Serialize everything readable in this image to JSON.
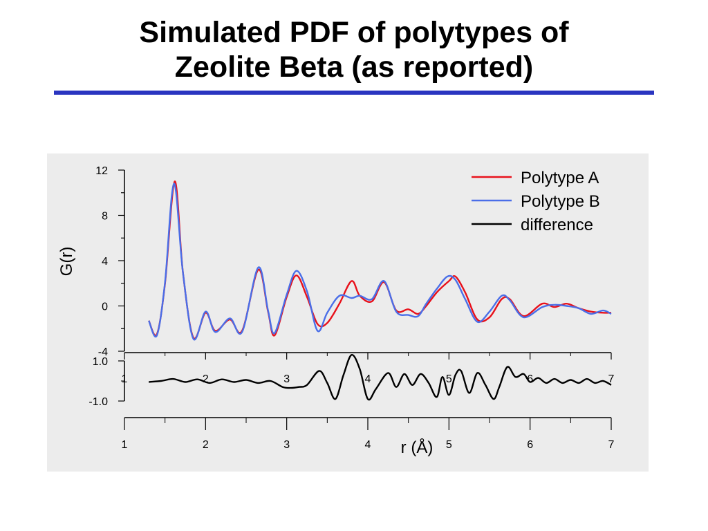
{
  "slide": {
    "title_line1": "Simulated PDF of polytypes of",
    "title_line2": "Zeolite Beta (as reported)"
  },
  "colors": {
    "rule": "#2a35c0",
    "panel": "#ececec",
    "polytype_a": "#e8111b",
    "polytype_b": "#4a6ee8",
    "difference": "#000000"
  },
  "chart_data": [
    {
      "type": "line",
      "title": "",
      "ylabel": "G(r)",
      "xlim": [
        1,
        7
      ],
      "ylim": [
        -4,
        12
      ],
      "yticks": [
        -4,
        0,
        4,
        8,
        12
      ],
      "xticks": [
        1,
        2,
        3,
        4,
        5,
        6,
        7
      ],
      "legend_position": "top-right",
      "series": [
        {
          "name": "Polytype A",
          "color": "#e8111b",
          "x": [
            1.3,
            1.4,
            1.5,
            1.62,
            1.72,
            1.85,
            2.0,
            2.12,
            2.3,
            2.45,
            2.65,
            2.77,
            2.85,
            3.0,
            3.12,
            3.25,
            3.38,
            3.5,
            3.65,
            3.8,
            3.9,
            4.05,
            4.2,
            4.35,
            4.5,
            4.62,
            4.72,
            4.85,
            5.0,
            5.08,
            5.2,
            5.35,
            5.5,
            5.65,
            5.75,
            5.92,
            6.15,
            6.3,
            6.45,
            6.6,
            6.75,
            6.9,
            7.0
          ],
          "y": [
            -1.3,
            -2.5,
            2.0,
            11.0,
            3.0,
            -2.8,
            -0.6,
            -2.2,
            -1.2,
            -2.2,
            3.2,
            -0.5,
            -2.6,
            0.8,
            2.7,
            0.8,
            -1.6,
            -1.5,
            0.2,
            2.2,
            0.9,
            0.4,
            2.1,
            -0.4,
            -0.3,
            -0.7,
            0.0,
            1.2,
            2.2,
            2.6,
            1.2,
            -1.2,
            -1.0,
            0.6,
            0.6,
            -0.9,
            0.2,
            -0.1,
            0.2,
            -0.2,
            -0.5,
            -0.6,
            -0.6
          ]
        },
        {
          "name": "Polytype B",
          "color": "#4a6ee8",
          "x": [
            1.3,
            1.4,
            1.5,
            1.61,
            1.72,
            1.85,
            2.0,
            2.12,
            2.3,
            2.45,
            2.65,
            2.77,
            2.85,
            3.0,
            3.12,
            3.25,
            3.38,
            3.5,
            3.65,
            3.8,
            3.9,
            4.05,
            4.2,
            4.35,
            4.5,
            4.62,
            4.72,
            4.85,
            4.98,
            5.08,
            5.2,
            5.35,
            5.5,
            5.65,
            5.75,
            5.92,
            6.15,
            6.3,
            6.45,
            6.6,
            6.75,
            6.9,
            7.0
          ],
          "y": [
            -1.3,
            -2.6,
            2.1,
            10.8,
            3.0,
            -2.9,
            -0.5,
            -2.3,
            -1.1,
            -2.3,
            3.4,
            -0.4,
            -2.4,
            1.0,
            3.1,
            1.3,
            -2.2,
            -0.6,
            0.9,
            0.7,
            0.9,
            0.6,
            2.2,
            -0.5,
            -0.8,
            -0.9,
            0.2,
            1.5,
            2.6,
            2.3,
            0.6,
            -1.4,
            -0.5,
            0.9,
            0.5,
            -1.0,
            -0.1,
            0.1,
            0.0,
            -0.2,
            -0.7,
            -0.4,
            -0.7
          ]
        }
      ]
    },
    {
      "type": "line",
      "title": "",
      "xlabel": "r (Å)",
      "xlim": [
        1,
        7
      ],
      "ylim": [
        -1.5,
        1.5
      ],
      "yticks": [
        -1.0,
        1.0
      ],
      "ytick_labels": [
        "-1.0",
        "1.0"
      ],
      "xticks": [
        1,
        2,
        3,
        4,
        5,
        6,
        7
      ],
      "legend_position": "top-right",
      "series": [
        {
          "name": "difference",
          "color": "#000000",
          "x": [
            1.3,
            1.45,
            1.6,
            1.75,
            1.9,
            2.05,
            2.2,
            2.35,
            2.5,
            2.65,
            2.8,
            2.95,
            3.05,
            3.15,
            3.25,
            3.4,
            3.5,
            3.6,
            3.7,
            3.8,
            3.9,
            4.0,
            4.1,
            4.25,
            4.35,
            4.45,
            4.55,
            4.65,
            4.75,
            4.85,
            4.92,
            5.0,
            5.08,
            5.15,
            5.25,
            5.35,
            5.45,
            5.55,
            5.62,
            5.72,
            5.82,
            5.92,
            6.0,
            6.1,
            6.2,
            6.3,
            6.4,
            6.5,
            6.6,
            6.7,
            6.8,
            6.9,
            7.0
          ],
          "y": [
            -0.05,
            0.0,
            0.1,
            -0.05,
            0.08,
            -0.1,
            0.08,
            -0.05,
            0.05,
            -0.1,
            0.0,
            -0.3,
            -0.35,
            -0.3,
            -0.2,
            0.5,
            -0.1,
            -0.9,
            0.3,
            1.3,
            0.6,
            -0.9,
            -0.4,
            0.4,
            -0.3,
            0.35,
            -0.2,
            0.35,
            -0.1,
            -0.8,
            0.2,
            -0.7,
            0.3,
            0.5,
            -0.6,
            0.4,
            -0.2,
            -0.9,
            -0.3,
            0.7,
            0.2,
            0.35,
            -0.05,
            0.15,
            -0.1,
            0.1,
            -0.1,
            0.05,
            -0.1,
            0.1,
            -0.1,
            0.0,
            -0.2
          ]
        }
      ]
    }
  ]
}
